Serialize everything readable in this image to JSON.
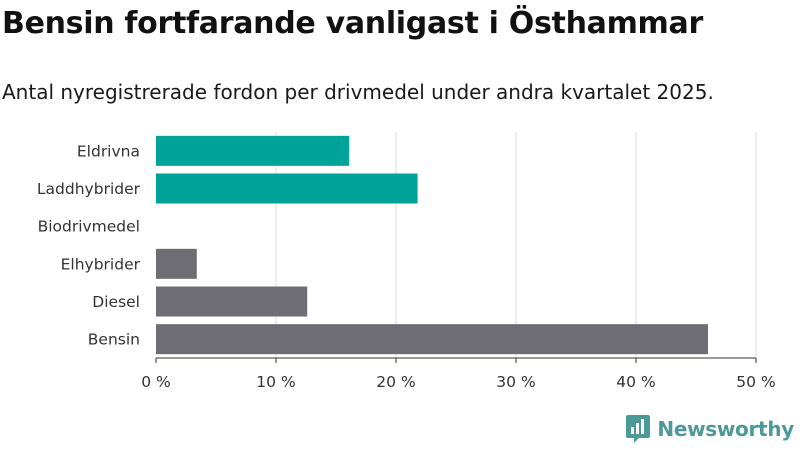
{
  "chart_data": {
    "type": "bar",
    "orientation": "horizontal",
    "title": "Bensin fortfarande vanligast i Östhammar",
    "subtitle": "Antal nyregistrerade fordon per drivmedel under andra kvartalet 2025.",
    "categories": [
      "Eldrivna",
      "Laddhybrider",
      "Biodrivmedel",
      "Elhybrider",
      "Diesel",
      "Bensin"
    ],
    "values": [
      16.1,
      21.8,
      0,
      3.4,
      12.6,
      46.0
    ],
    "colors": [
      "#00a39a",
      "#00a39a",
      "#00a39a",
      "#6e6d73",
      "#6e6d73",
      "#6e6d73"
    ],
    "xlim": [
      0,
      50
    ],
    "xticks": [
      0,
      10,
      20,
      30,
      40,
      50
    ],
    "xtick_labels": [
      "0 %",
      "10 %",
      "20 %",
      "30 %",
      "40 %",
      "50 %"
    ],
    "xlabel": "",
    "ylabel": "",
    "grid": true
  },
  "brand": {
    "name": "Newsworthy",
    "icon": "newsworthy-logo-icon",
    "color": "#4b9a97"
  }
}
